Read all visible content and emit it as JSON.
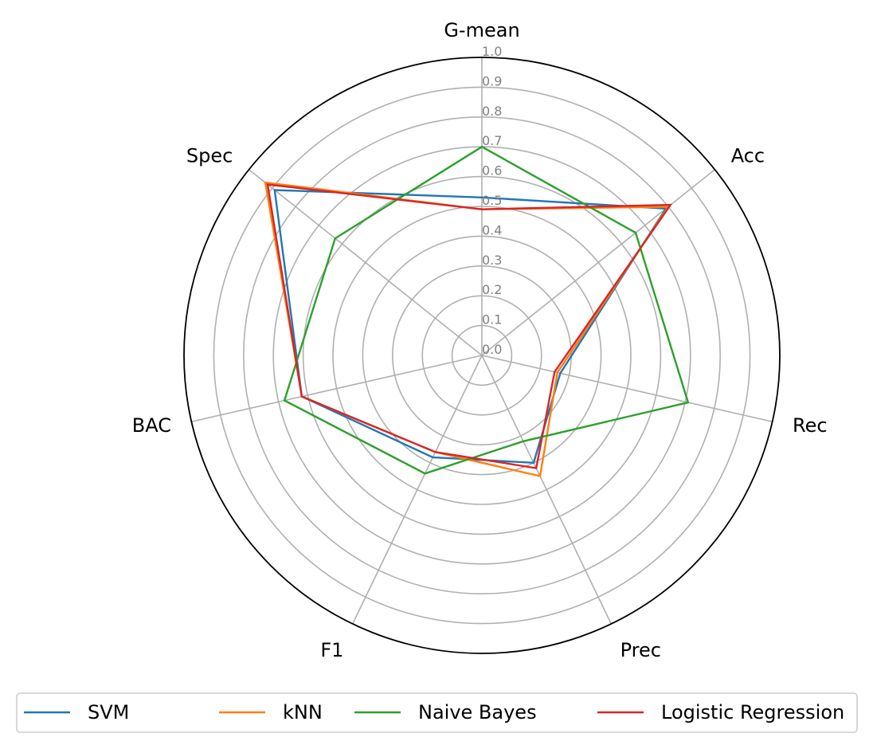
{
  "chart_data": {
    "type": "radar",
    "axes": [
      "G-mean",
      "Acc",
      "Rec",
      "Prec",
      "F1",
      "BAC",
      "Spec"
    ],
    "rticks": [
      "0.0",
      "0.1",
      "0.2",
      "0.3",
      "0.4",
      "0.5",
      "0.6",
      "0.7",
      "0.8",
      "0.9",
      "1.0"
    ],
    "rlim": [
      0,
      1
    ],
    "grid": true,
    "legend_position": "bottom",
    "series": [
      {
        "name": "SVM",
        "color": "#1f77b4",
        "values": [
          0.53,
          0.79,
          0.27,
          0.4,
          0.38,
          0.62,
          0.89
        ]
      },
      {
        "name": "kNN",
        "color": "#ff7f0e",
        "values": [
          0.49,
          0.8,
          0.26,
          0.45,
          0.36,
          0.62,
          0.93
        ]
      },
      {
        "name": "Naive Bayes",
        "color": "#2ca02c",
        "values": [
          0.7,
          0.66,
          0.71,
          0.32,
          0.44,
          0.68,
          0.63
        ]
      },
      {
        "name": "Logistic Regression",
        "color": "#d62728",
        "values": [
          0.49,
          0.81,
          0.25,
          0.42,
          0.36,
          0.62,
          0.92
        ]
      }
    ]
  }
}
